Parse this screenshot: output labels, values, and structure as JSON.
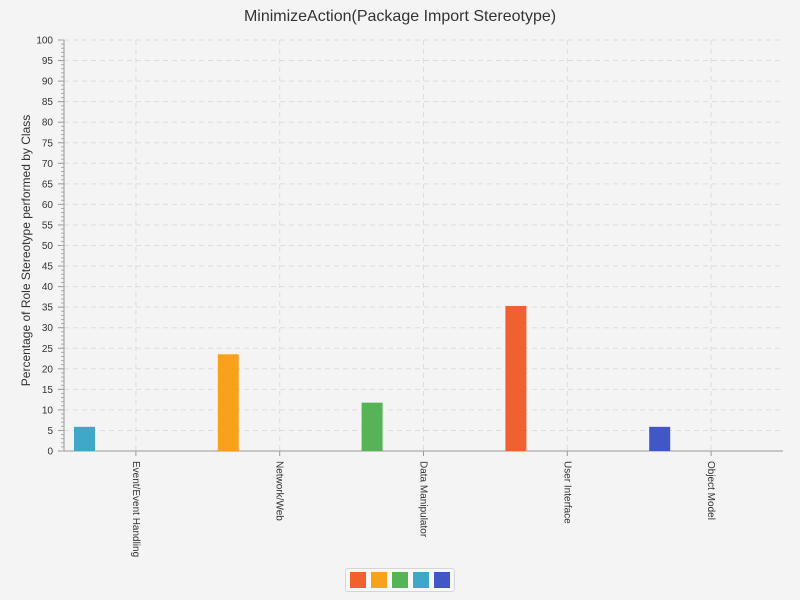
{
  "chart_data": {
    "type": "bar",
    "title": "MinimizeAction(Package Import Stereotype)",
    "xlabel": "",
    "ylabel": "Percentage of Role Stereotype performed by Class",
    "categories": [
      "Event/Event Handling",
      "Network/Web",
      "Data Manipulator",
      "User Interface",
      "Object Model"
    ],
    "values": [
      5.88,
      23.53,
      11.76,
      35.29,
      5.88
    ],
    "colors": [
      "#3fa8c8",
      "#f8a11b",
      "#56b456",
      "#f0612f",
      "#4257c6"
    ],
    "ylim": [
      0,
      100
    ],
    "ytick_step": 5,
    "yticks": [
      "0",
      "5",
      "10",
      "15",
      "20",
      "25",
      "30",
      "35",
      "40",
      "45",
      "50",
      "55",
      "60",
      "65",
      "70",
      "75",
      "80",
      "85",
      "90",
      "95",
      "100"
    ],
    "grid": true,
    "legend": {
      "placement": "bottom-center",
      "swatches": [
        "#f0612f",
        "#f8a11b",
        "#56b456",
        "#3fa8c8",
        "#4257c6"
      ]
    }
  }
}
